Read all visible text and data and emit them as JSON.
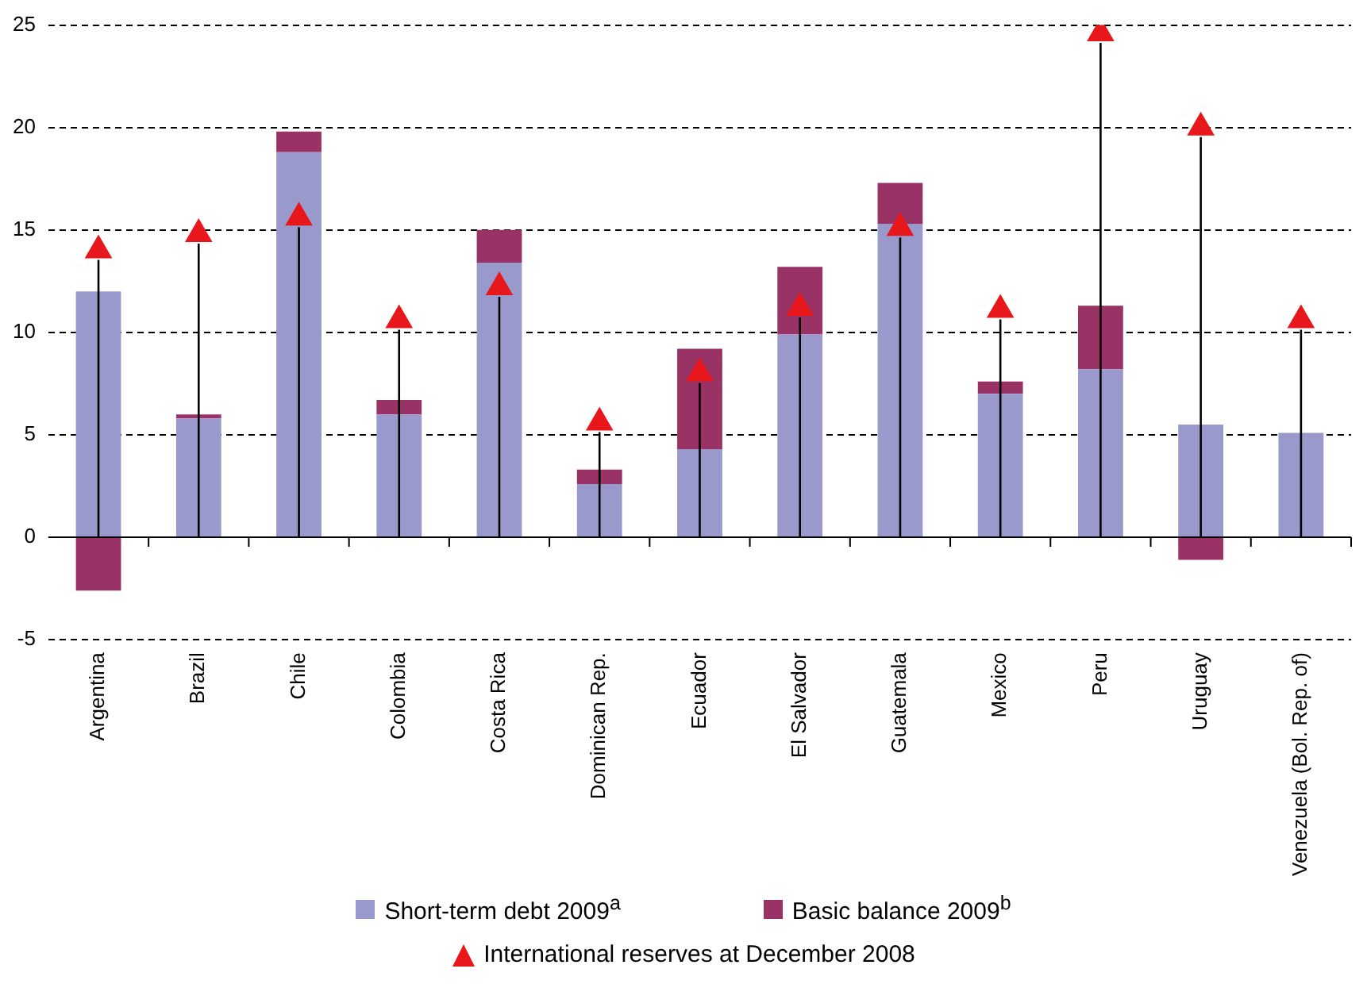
{
  "chart_data": {
    "type": "bar",
    "stacked": true,
    "categories": [
      "Argentina",
      "Brazil",
      "Chile",
      "Colombia",
      "Costa Rica",
      "Dominican Rep.",
      "Ecuador",
      "El Salvador",
      "Guatemala",
      "Mexico",
      "Peru",
      "Uruguay",
      "Venezuela (Bol. Rep. of)"
    ],
    "series": [
      {
        "name": "Short-term debt 2009$^{a}$",
        "color": "#9999cc",
        "values": [
          12.0,
          5.8,
          18.8,
          6.0,
          13.4,
          2.6,
          4.3,
          9.9,
          15.3,
          7.0,
          8.2,
          5.5,
          5.1
        ]
      },
      {
        "name": "Basic balance 2009$^{b}$",
        "color": "#993366",
        "values": [
          -2.6,
          0.2,
          1.0,
          0.7,
          1.6,
          0.7,
          4.9,
          3.3,
          2.0,
          0.6,
          3.1,
          -1.1,
          null
        ]
      },
      {
        "name": "International reserves at December 2008",
        "type": "lollipop",
        "color": "#e8171b",
        "values": [
          14.0,
          14.8,
          15.6,
          10.6,
          12.2,
          5.6,
          8.0,
          11.2,
          15.1,
          11.1,
          24.6,
          20.0,
          10.6
        ]
      }
    ],
    "ylim": [
      -5,
      25
    ],
    "yticks": [
      -5,
      0,
      5,
      10,
      15,
      20,
      25
    ],
    "grid": "y",
    "legend": "bottom",
    "marker": "triangle"
  }
}
